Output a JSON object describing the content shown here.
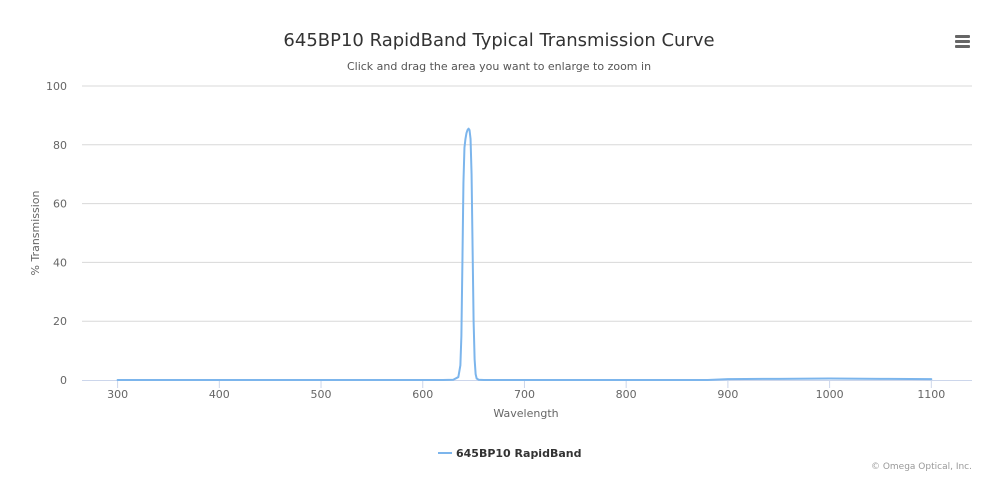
{
  "chart_data": {
    "type": "line",
    "title": "645BP10 RapidBand Typical Transmission Curve",
    "subtitle": "Click and drag the area you want to enlarge to zoom in",
    "xlabel": "Wavelength",
    "ylabel": "% Transmission",
    "xlim": [
      265,
      1140
    ],
    "ylim": [
      0,
      100
    ],
    "x_ticks": [
      300,
      400,
      500,
      600,
      700,
      800,
      900,
      1000,
      1100
    ],
    "y_ticks": [
      0,
      20,
      40,
      60,
      80,
      100
    ],
    "grid": "horizontal",
    "legend_position": "bottom-center",
    "series": [
      {
        "name": "645BP10 RapidBand",
        "color": "#7cb5ec",
        "x": [
          300,
          400,
          500,
          600,
          620,
          630,
          635,
          637,
          638,
          639,
          640,
          641,
          642,
          643,
          644,
          645,
          646,
          647,
          648,
          649,
          650,
          651,
          652,
          653,
          655,
          660,
          680,
          700,
          800,
          880,
          900,
          950,
          1000,
          1050,
          1100
        ],
        "y": [
          0,
          0,
          0,
          0,
          0,
          0.1,
          1,
          5,
          15,
          40,
          67,
          79,
          82,
          84,
          85,
          85.5,
          85,
          82,
          70,
          45,
          20,
          7,
          2,
          0.5,
          0.1,
          0,
          0,
          0,
          0,
          0,
          0.3,
          0.4,
          0.5,
          0.4,
          0.3
        ]
      }
    ]
  },
  "menu_icon": "hamburger-menu-icon",
  "credits": "© Omega Optical, Inc."
}
